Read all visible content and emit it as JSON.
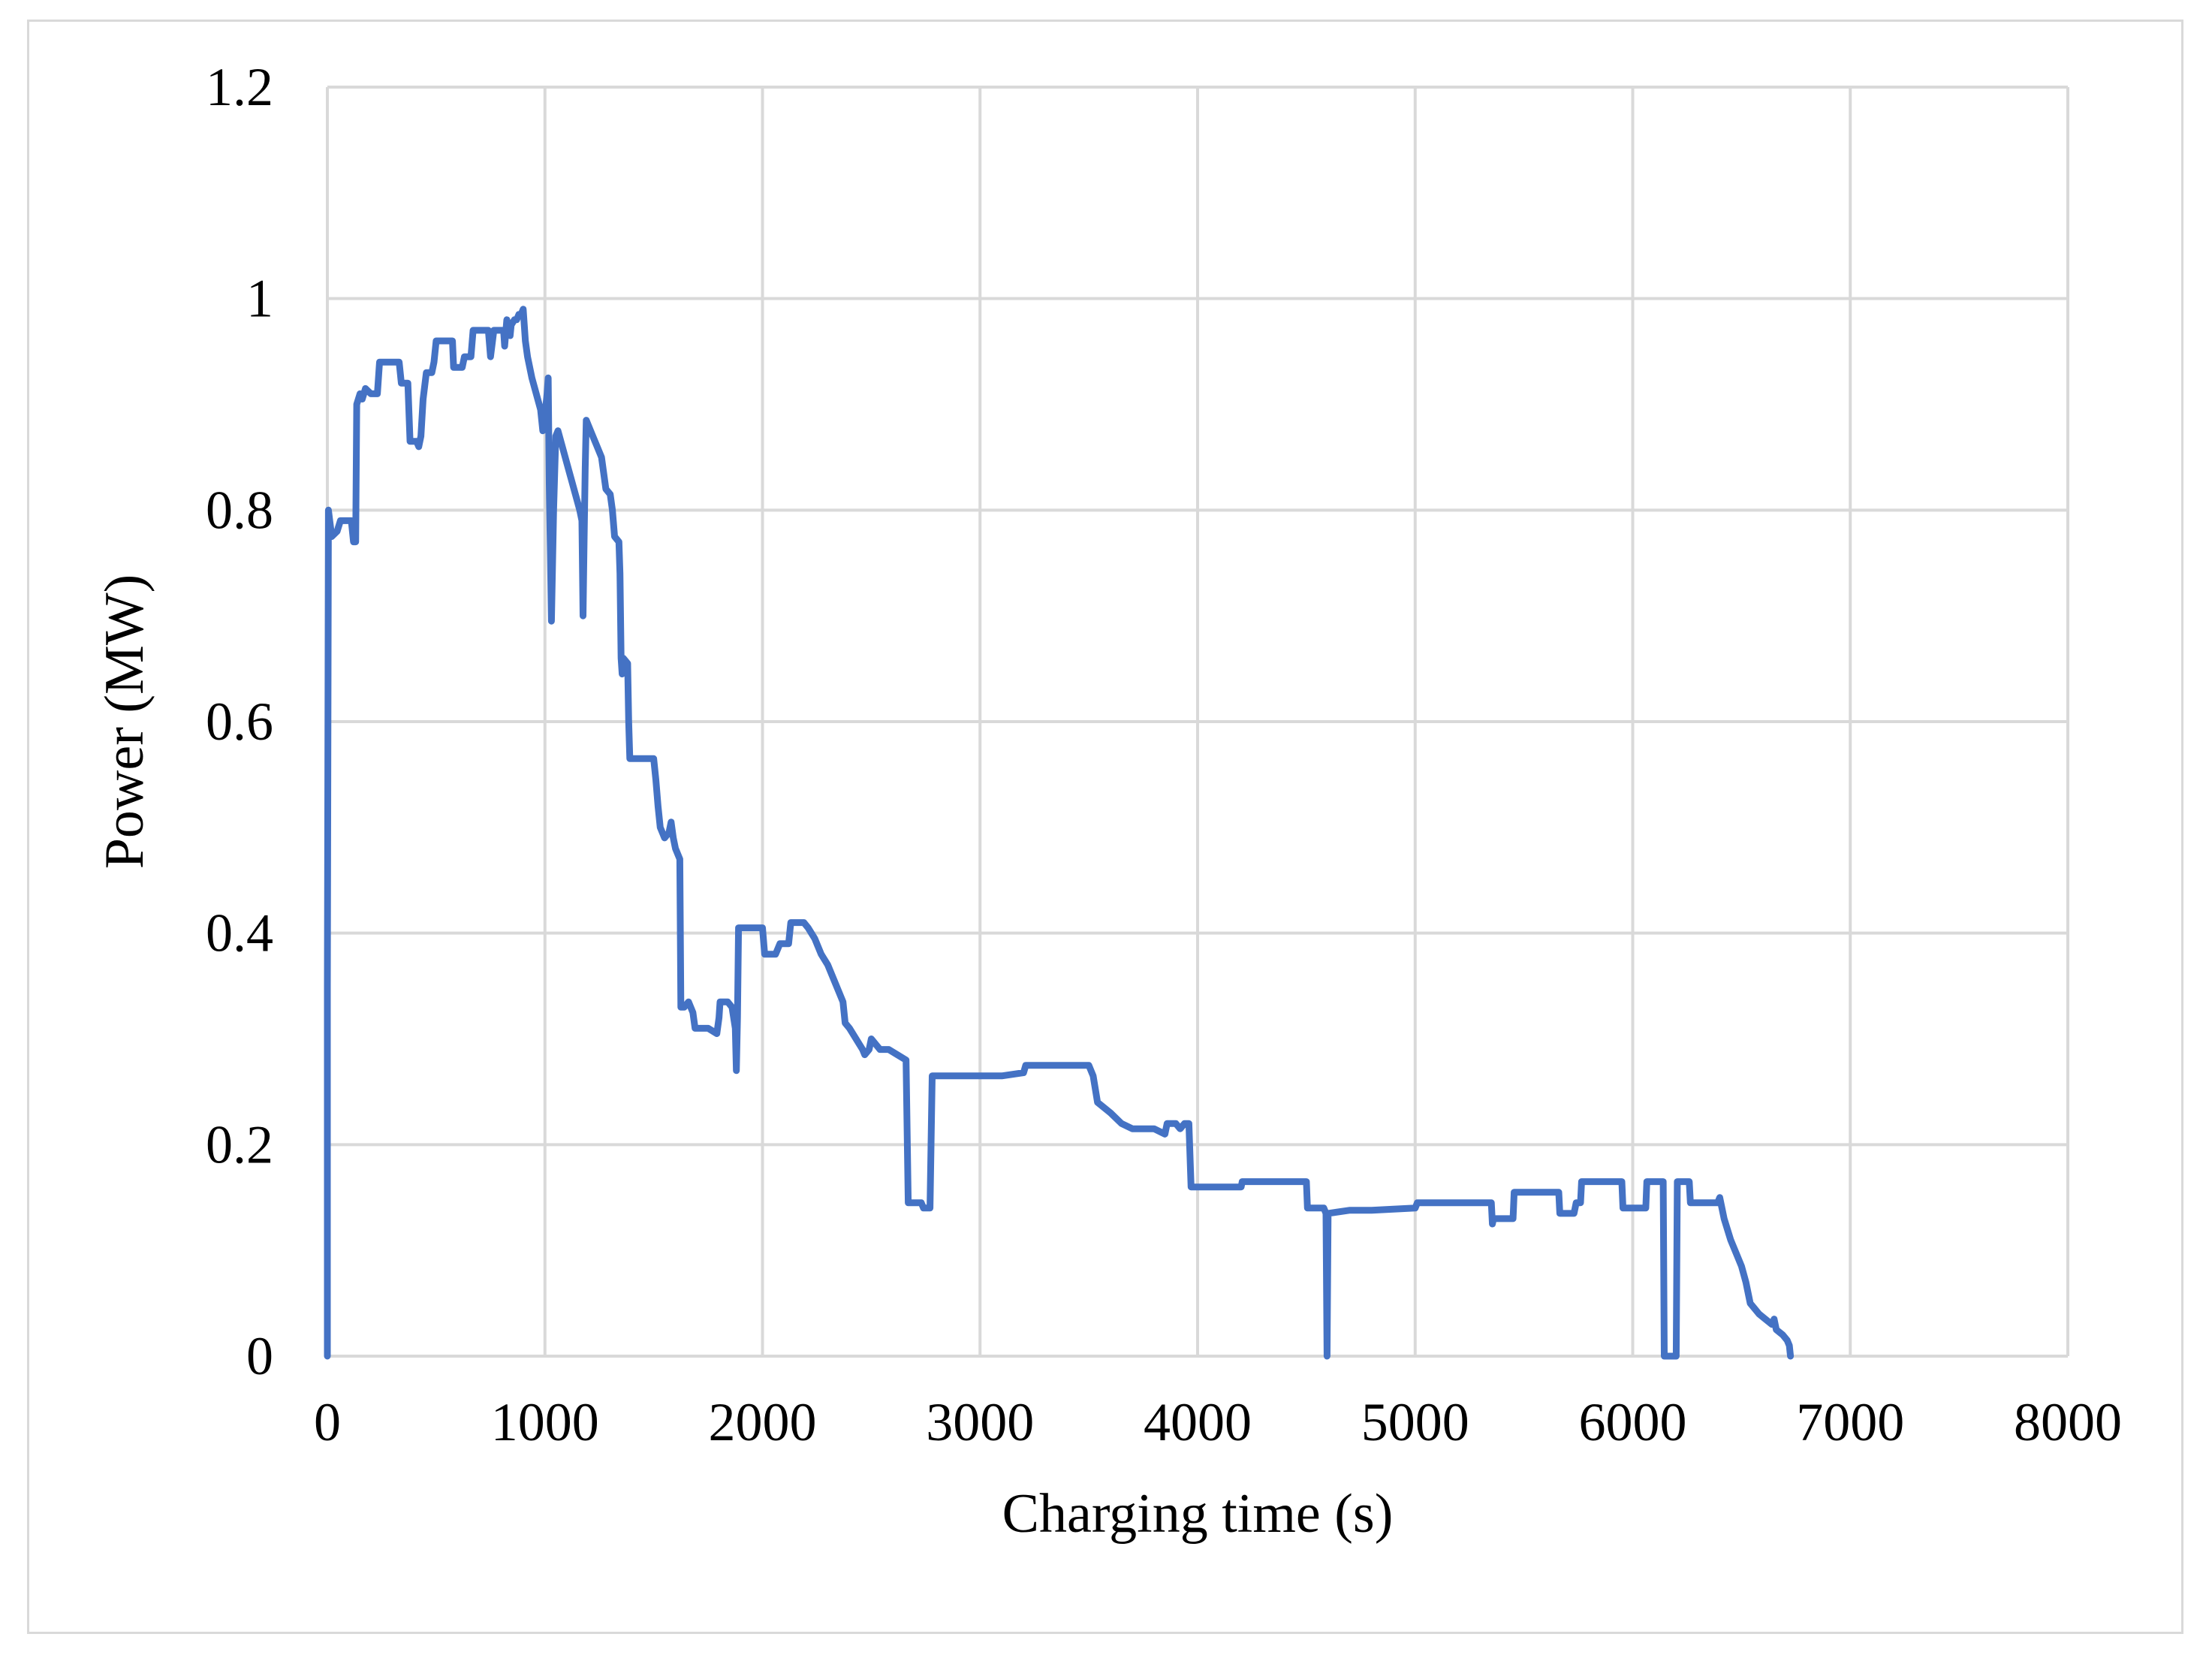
{
  "chart_data": {
    "type": "line",
    "title": "",
    "xlabel": "Charging time (s)",
    "ylabel": "Power (MW)",
    "xlim": [
      0,
      8000
    ],
    "ylim": [
      0,
      1.2
    ],
    "x_ticks": [
      "0",
      "1000",
      "2000",
      "3000",
      "4000",
      "5000",
      "6000",
      "7000",
      "8000"
    ],
    "y_ticks": [
      "0",
      "0.2",
      "0.4",
      "0.6",
      "0.8",
      "1",
      "1.2"
    ],
    "grid": true,
    "legend": "none",
    "series": [
      {
        "color": "#4472c4",
        "points": [
          [
            0,
            0
          ],
          [
            0,
            0.35
          ],
          [
            5,
            0.8
          ],
          [
            20,
            0.775
          ],
          [
            45,
            0.78
          ],
          [
            60,
            0.79
          ],
          [
            110,
            0.79
          ],
          [
            120,
            0.77
          ],
          [
            130,
            0.77
          ],
          [
            135,
            0.9
          ],
          [
            150,
            0.91
          ],
          [
            160,
            0.905
          ],
          [
            175,
            0.915
          ],
          [
            200,
            0.91
          ],
          [
            230,
            0.91
          ],
          [
            240,
            0.94
          ],
          [
            280,
            0.94
          ],
          [
            330,
            0.94
          ],
          [
            340,
            0.92
          ],
          [
            370,
            0.92
          ],
          [
            380,
            0.865
          ],
          [
            410,
            0.865
          ],
          [
            420,
            0.86
          ],
          [
            430,
            0.87
          ],
          [
            440,
            0.905
          ],
          [
            455,
            0.93
          ],
          [
            480,
            0.93
          ],
          [
            490,
            0.94
          ],
          [
            500,
            0.96
          ],
          [
            520,
            0.96
          ],
          [
            560,
            0.96
          ],
          [
            575,
            0.96
          ],
          [
            580,
            0.935
          ],
          [
            620,
            0.935
          ],
          [
            630,
            0.945
          ],
          [
            660,
            0.945
          ],
          [
            670,
            0.97
          ],
          [
            700,
            0.97
          ],
          [
            730,
            0.97
          ],
          [
            740,
            0.97
          ],
          [
            750,
            0.945
          ],
          [
            765,
            0.97
          ],
          [
            800,
            0.97
          ],
          [
            810,
            0.97
          ],
          [
            815,
            0.955
          ],
          [
            825,
            0.98
          ],
          [
            840,
            0.965
          ],
          [
            845,
            0.975
          ],
          [
            860,
            0.98
          ],
          [
            870,
            0.98
          ],
          [
            880,
            0.985
          ],
          [
            890,
            0.985
          ],
          [
            900,
            0.99
          ],
          [
            910,
            0.96
          ],
          [
            920,
            0.945
          ],
          [
            940,
            0.925
          ],
          [
            960,
            0.91
          ],
          [
            980,
            0.895
          ],
          [
            990,
            0.875
          ],
          [
            1000,
            0.89
          ],
          [
            1010,
            0.91
          ],
          [
            1015,
            0.925
          ],
          [
            1020,
            0.825
          ],
          [
            1025,
            0.76
          ],
          [
            1030,
            0.695
          ],
          [
            1040,
            0.8
          ],
          [
            1050,
            0.87
          ],
          [
            1060,
            0.875
          ],
          [
            1080,
            0.86
          ],
          [
            1100,
            0.845
          ],
          [
            1120,
            0.83
          ],
          [
            1140,
            0.815
          ],
          [
            1160,
            0.8
          ],
          [
            1170,
            0.79
          ],
          [
            1175,
            0.7
          ],
          [
            1180,
            0.77
          ],
          [
            1185,
            0.84
          ],
          [
            1190,
            0.885
          ],
          [
            1200,
            0.88
          ],
          [
            1220,
            0.87
          ],
          [
            1240,
            0.86
          ],
          [
            1260,
            0.85
          ],
          [
            1270,
            0.835
          ],
          [
            1280,
            0.82
          ],
          [
            1300,
            0.815
          ],
          [
            1310,
            0.8
          ],
          [
            1320,
            0.775
          ],
          [
            1340,
            0.77
          ],
          [
            1345,
            0.74
          ],
          [
            1350,
            0.66
          ],
          [
            1355,
            0.645
          ],
          [
            1360,
            0.66
          ],
          [
            1380,
            0.655
          ],
          [
            1385,
            0.6
          ],
          [
            1390,
            0.565
          ],
          [
            1420,
            0.565
          ],
          [
            1480,
            0.565
          ],
          [
            1500,
            0.565
          ],
          [
            1510,
            0.545
          ],
          [
            1520,
            0.52
          ],
          [
            1530,
            0.5
          ],
          [
            1550,
            0.49
          ],
          [
            1570,
            0.495
          ],
          [
            1580,
            0.505
          ],
          [
            1590,
            0.49
          ],
          [
            1600,
            0.48
          ],
          [
            1620,
            0.47
          ],
          [
            1625,
            0.33
          ],
          [
            1640,
            0.33
          ],
          [
            1660,
            0.335
          ],
          [
            1680,
            0.325
          ],
          [
            1690,
            0.31
          ],
          [
            1710,
            0.31
          ],
          [
            1750,
            0.31
          ],
          [
            1790,
            0.305
          ],
          [
            1800,
            0.32
          ],
          [
            1805,
            0.335
          ],
          [
            1840,
            0.335
          ],
          [
            1860,
            0.33
          ],
          [
            1875,
            0.31
          ],
          [
            1880,
            0.27
          ],
          [
            1885,
            0.32
          ],
          [
            1890,
            0.405
          ],
          [
            1920,
            0.405
          ],
          [
            1990,
            0.405
          ],
          [
            2000,
            0.405
          ],
          [
            2010,
            0.38
          ],
          [
            2060,
            0.38
          ],
          [
            2080,
            0.39
          ],
          [
            2120,
            0.39
          ],
          [
            2130,
            0.41
          ],
          [
            2190,
            0.41
          ],
          [
            2210,
            0.405
          ],
          [
            2240,
            0.395
          ],
          [
            2270,
            0.38
          ],
          [
            2300,
            0.37
          ],
          [
            2330,
            0.355
          ],
          [
            2350,
            0.345
          ],
          [
            2370,
            0.335
          ],
          [
            2380,
            0.315
          ],
          [
            2400,
            0.31
          ],
          [
            2430,
            0.3
          ],
          [
            2460,
            0.29
          ],
          [
            2470,
            0.285
          ],
          [
            2490,
            0.29
          ],
          [
            2500,
            0.3
          ],
          [
            2540,
            0.29
          ],
          [
            2580,
            0.29
          ],
          [
            2620,
            0.285
          ],
          [
            2660,
            0.28
          ],
          [
            2670,
            0.145
          ],
          [
            2700,
            0.145
          ],
          [
            2730,
            0.145
          ],
          [
            2740,
            0.14
          ],
          [
            2770,
            0.14
          ],
          [
            2780,
            0.265
          ],
          [
            2900,
            0.265
          ],
          [
            3000,
            0.265
          ],
          [
            3100,
            0.265
          ],
          [
            3200,
            0.268
          ],
          [
            3210,
            0.275
          ],
          [
            3300,
            0.275
          ],
          [
            3400,
            0.275
          ],
          [
            3500,
            0.275
          ],
          [
            3520,
            0.265
          ],
          [
            3540,
            0.24
          ],
          [
            3600,
            0.23
          ],
          [
            3650,
            0.22
          ],
          [
            3700,
            0.215
          ],
          [
            3800,
            0.215
          ],
          [
            3850,
            0.21
          ],
          [
            3860,
            0.22
          ],
          [
            3900,
            0.22
          ],
          [
            3920,
            0.215
          ],
          [
            3940,
            0.22
          ],
          [
            3960,
            0.22
          ],
          [
            3970,
            0.16
          ],
          [
            4100,
            0.16
          ],
          [
            4200,
            0.16
          ],
          [
            4205,
            0.165
          ],
          [
            4350,
            0.165
          ],
          [
            4400,
            0.165
          ],
          [
            4500,
            0.165
          ],
          [
            4505,
            0.14
          ],
          [
            4580,
            0.14
          ],
          [
            4590,
            0.135
          ],
          [
            4595,
            0
          ],
          [
            4600,
            0.135
          ],
          [
            4700,
            0.138
          ],
          [
            4800,
            0.138
          ],
          [
            5000,
            0.14
          ],
          [
            5010,
            0.145
          ],
          [
            5200,
            0.145
          ],
          [
            5350,
            0.145
          ],
          [
            5355,
            0.125
          ],
          [
            5360,
            0.13
          ],
          [
            5450,
            0.13
          ],
          [
            5455,
            0.155
          ],
          [
            5600,
            0.155
          ],
          [
            5660,
            0.155
          ],
          [
            5665,
            0.135
          ],
          [
            5730,
            0.135
          ],
          [
            5740,
            0.145
          ],
          [
            5760,
            0.145
          ],
          [
            5765,
            0.165
          ],
          [
            5900,
            0.165
          ],
          [
            5950,
            0.165
          ],
          [
            5955,
            0.14
          ],
          [
            6060,
            0.14
          ],
          [
            6065,
            0.165
          ],
          [
            6130,
            0.165
          ],
          [
            6140,
            0.165
          ],
          [
            6145,
            0
          ],
          [
            6200,
            0
          ],
          [
            6205,
            0.165
          ],
          [
            6250,
            0.165
          ],
          [
            6260,
            0.165
          ],
          [
            6265,
            0.145
          ],
          [
            6320,
            0.145
          ],
          [
            6390,
            0.145
          ],
          [
            6400,
            0.15
          ],
          [
            6420,
            0.13
          ],
          [
            6450,
            0.11
          ],
          [
            6480,
            0.095
          ],
          [
            6500,
            0.085
          ],
          [
            6520,
            0.07
          ],
          [
            6540,
            0.05
          ],
          [
            6560,
            0.045
          ],
          [
            6580,
            0.04
          ],
          [
            6610,
            0.035
          ],
          [
            6640,
            0.03
          ],
          [
            6650,
            0.035
          ],
          [
            6660,
            0.025
          ],
          [
            6690,
            0.02
          ],
          [
            6710,
            0.015
          ],
          [
            6720,
            0.01
          ],
          [
            6725,
            0
          ]
        ]
      }
    ]
  }
}
